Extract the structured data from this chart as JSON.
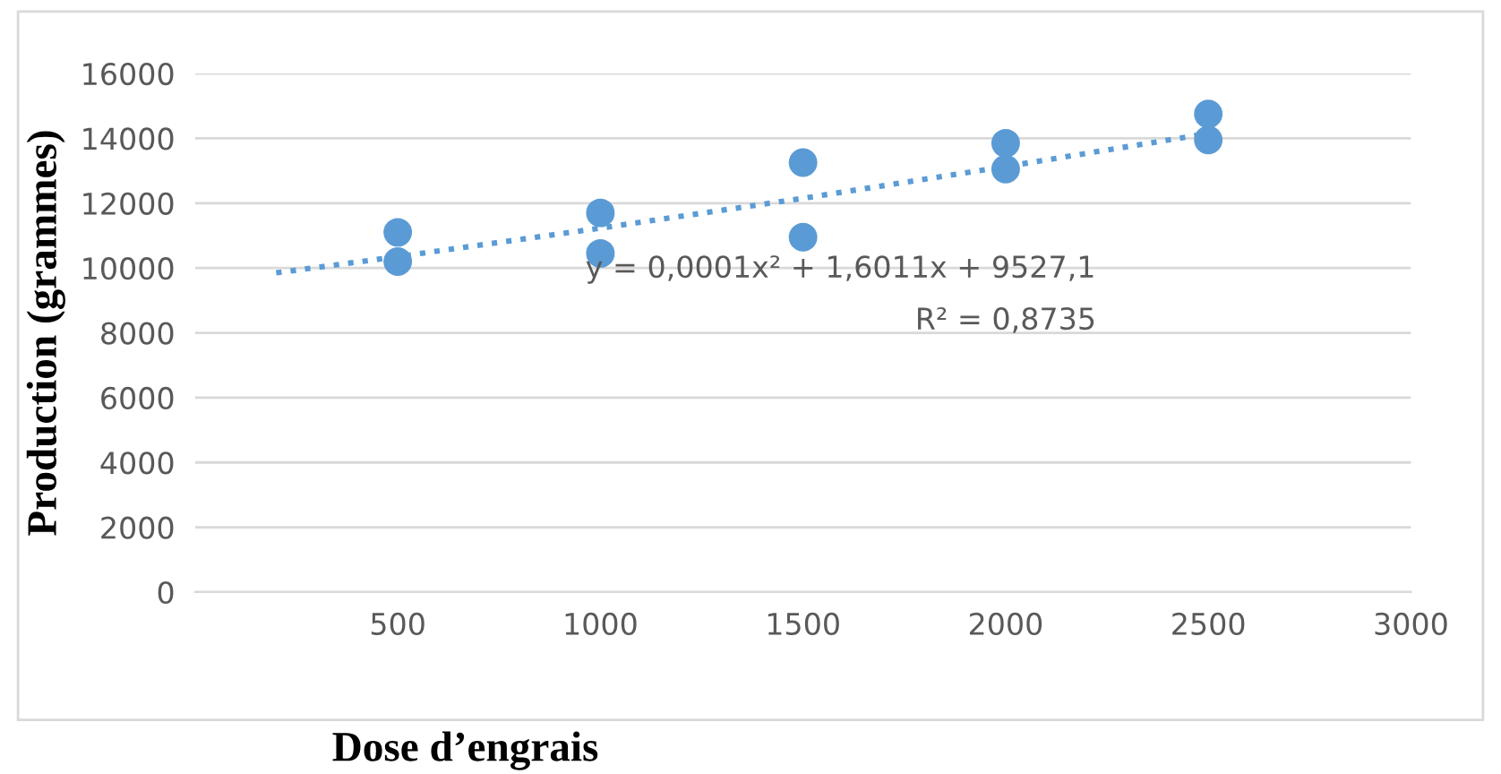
{
  "chart_data": {
    "type": "scatter",
    "xlabel": "Dose d’engrais",
    "ylabel": "Production (grammes)",
    "series": [
      {
        "color": "#5b9bd5",
        "marker": "circle",
        "x": [
          500,
          500,
          1000,
          1000,
          1500,
          1500,
          2000,
          2000,
          2500,
          2500
        ],
        "values": [
          11100,
          10200,
          11700,
          10450,
          13250,
          10950,
          13850,
          13050,
          14750,
          13950
        ]
      },
      {
        "type": "line",
        "color": "#5b9bd5",
        "line_style": "dotted",
        "marker": "none",
        "x": [
          200,
          500,
          1000,
          1500,
          2000,
          2500
        ],
        "values": [
          9850,
          10350,
          11230,
          12150,
          13130,
          14150
        ]
      }
    ],
    "annotations": [
      "y = 0,0001x² + 1,6011x + 9527,1",
      "R² = 0,8735"
    ],
    "xlim": [
      0,
      3000
    ],
    "xticks": [
      500,
      1000,
      1500,
      2000,
      2500,
      3000
    ],
    "ylim": [
      0,
      16000
    ],
    "yticks": [
      0,
      2000,
      4000,
      6000,
      8000,
      10000,
      12000,
      14000,
      16000
    ],
    "grid": "y"
  }
}
